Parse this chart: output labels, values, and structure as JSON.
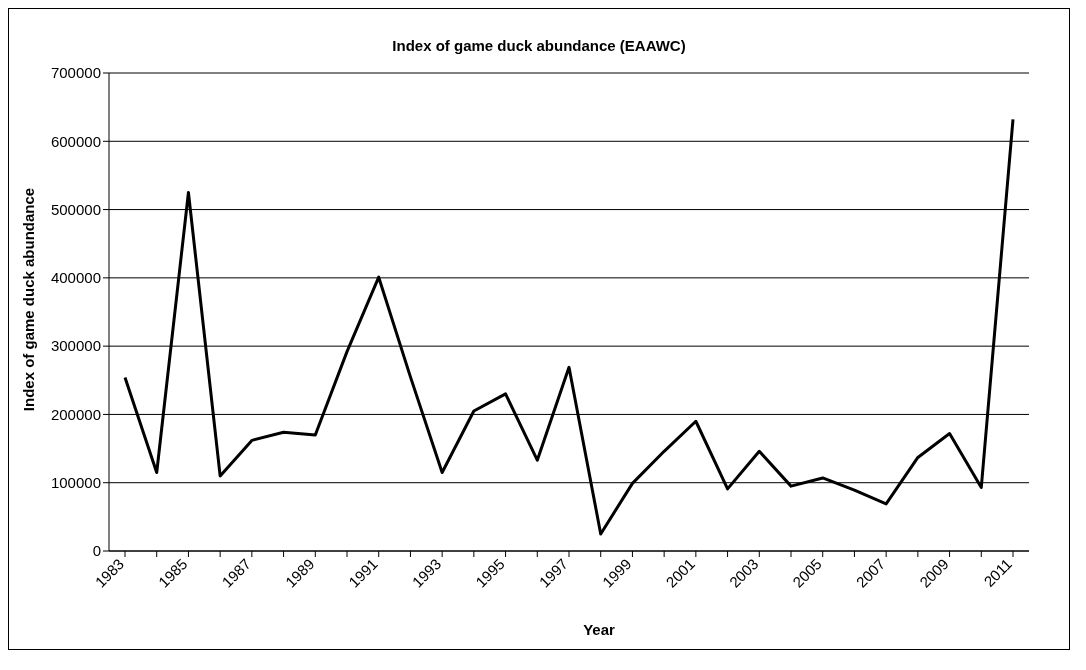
{
  "chart_data": {
    "type": "line",
    "title": "Index of game duck abundance (EAAWC)",
    "xlabel": "Year",
    "ylabel": "Index of game duck abundance",
    "categories": [
      "1983",
      null,
      "1985",
      null,
      "1987",
      null,
      "1989",
      null,
      "1991",
      null,
      "1993",
      null,
      "1995",
      null,
      "1997",
      null,
      "1999",
      null,
      "2001",
      null,
      "2003",
      null,
      "2005",
      null,
      "2007",
      null,
      "2009",
      null,
      "2011"
    ],
    "series": [
      {
        "color": "#000000",
        "values": [
          254000,
          115000,
          525000,
          110000,
          162000,
          174000,
          170000,
          292000,
          401000,
          255000,
          115000,
          205000,
          230000,
          133000,
          269000,
          25000,
          99000,
          146000,
          190000,
          91000,
          146000,
          95000,
          107000,
          89000,
          69000,
          137000,
          172000,
          93000,
          632000
        ]
      }
    ],
    "ylim": [
      0,
      700000
    ],
    "yticks": [
      0,
      100000,
      200000,
      300000,
      400000,
      500000,
      600000,
      700000
    ],
    "grid": "y",
    "legend": false,
    "marker": "none",
    "line_style": "solid"
  }
}
